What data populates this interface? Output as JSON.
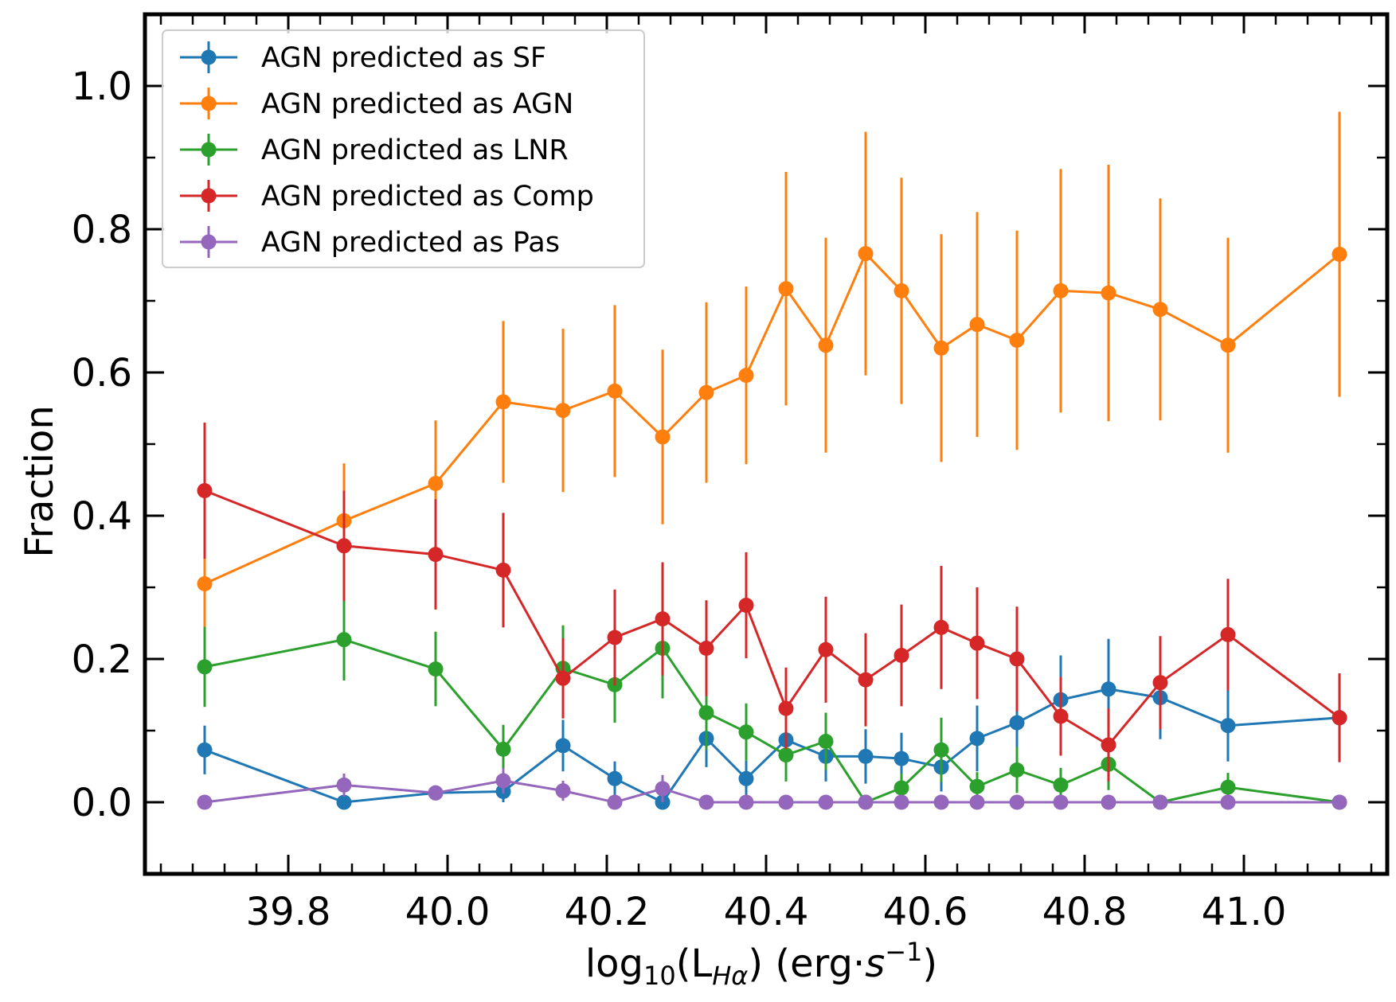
{
  "chart_data": {
    "type": "line",
    "title": "",
    "xlabel": "log10(LHα) (erg·s−1)",
    "xlabel_parts": {
      "pre": "log",
      "sub1": "10",
      "mid": "(L",
      "sub2": "Hα",
      "post": ") (erg·",
      "s": "s",
      "sup": "−1",
      "end": ")"
    },
    "ylabel": "Fraction",
    "xlim": [
      39.62,
      41.18
    ],
    "ylim": [
      -0.1,
      1.1
    ],
    "xticks": [
      "39.8",
      "40.0",
      "40.2",
      "40.4",
      "40.6",
      "40.8",
      "41.0"
    ],
    "yticks": [
      "0.0",
      "0.2",
      "0.4",
      "0.6",
      "0.8",
      "1.0"
    ],
    "legend_position": "top-left",
    "x": [
      39.695,
      39.87,
      39.985,
      40.07,
      40.145,
      40.21,
      40.27,
      40.325,
      40.375,
      40.425,
      40.475,
      40.525,
      40.57,
      40.62,
      40.665,
      40.715,
      40.77,
      40.83,
      40.895,
      40.98,
      41.12
    ],
    "series": [
      {
        "name": "AGN predicted as SF",
        "color": "#1f77b4",
        "values": [
          0.073,
          0.0,
          0.013,
          0.015,
          0.079,
          0.033,
          0.0,
          0.089,
          0.033,
          0.087,
          0.064,
          0.064,
          0.061,
          0.049,
          0.089,
          0.111,
          0.143,
          0.158,
          0.146,
          0.107,
          0.118
        ],
        "errors": [
          0.034,
          0.004,
          0.01,
          0.015,
          0.036,
          0.024,
          0.008,
          0.04,
          0.025,
          0.04,
          0.035,
          0.038,
          0.036,
          0.034,
          0.046,
          0.05,
          0.062,
          0.07,
          0.058,
          0.05,
          0.062
        ]
      },
      {
        "name": "AGN predicted as AGN",
        "color": "#ff7f0e",
        "values": [
          0.305,
          0.393,
          0.445,
          0.559,
          0.547,
          0.574,
          0.51,
          0.572,
          0.596,
          0.717,
          0.638,
          0.766,
          0.714,
          0.634,
          0.667,
          0.645,
          0.714,
          0.711,
          0.688,
          0.638,
          0.765
        ],
        "errors": [
          0.06,
          0.08,
          0.088,
          0.113,
          0.114,
          0.12,
          0.122,
          0.126,
          0.124,
          0.163,
          0.15,
          0.17,
          0.158,
          0.159,
          0.157,
          0.153,
          0.17,
          0.179,
          0.155,
          0.15,
          0.199
        ]
      },
      {
        "name": "AGN predicted as LNR",
        "color": "#2ca02c",
        "values": [
          0.189,
          0.227,
          0.186,
          0.074,
          0.187,
          0.164,
          0.215,
          0.125,
          0.098,
          0.066,
          0.085,
          0.0,
          0.02,
          0.073,
          0.022,
          0.045,
          0.024,
          0.053,
          0.0,
          0.021,
          0.0
        ],
        "errors": [
          0.056,
          0.057,
          0.052,
          0.034,
          0.06,
          0.053,
          0.07,
          0.052,
          0.04,
          0.037,
          0.04,
          0.006,
          0.02,
          0.045,
          0.02,
          0.032,
          0.024,
          0.036,
          0.005,
          0.02,
          0.005
        ]
      },
      {
        "name": "AGN predicted as Comp",
        "color": "#d62728",
        "values": [
          0.435,
          0.358,
          0.346,
          0.324,
          0.173,
          0.23,
          0.256,
          0.215,
          0.275,
          0.131,
          0.213,
          0.171,
          0.205,
          0.244,
          0.222,
          0.2,
          0.12,
          0.08,
          0.167,
          0.234,
          0.118
        ],
        "errors": [
          0.095,
          0.077,
          0.077,
          0.08,
          0.056,
          0.067,
          0.079,
          0.067,
          0.074,
          0.057,
          0.074,
          0.065,
          0.071,
          0.086,
          0.078,
          0.073,
          0.055,
          0.051,
          0.065,
          0.078,
          0.062
        ]
      },
      {
        "name": "AGN predicted as Pas",
        "color": "#9467bd",
        "values": [
          0.0,
          0.024,
          0.013,
          0.03,
          0.016,
          0.0,
          0.019,
          0.0,
          0.0,
          0.0,
          0.0,
          0.0,
          0.0,
          0.0,
          0.0,
          0.0,
          0.0,
          0.0,
          0.0,
          0.0,
          0.0
        ],
        "errors": [
          0.004,
          0.016,
          0.01,
          0.018,
          0.014,
          0.004,
          0.019,
          0.003,
          0.003,
          0.003,
          0.003,
          0.003,
          0.003,
          0.003,
          0.003,
          0.003,
          0.003,
          0.003,
          0.003,
          0.003,
          0.003
        ]
      }
    ]
  }
}
